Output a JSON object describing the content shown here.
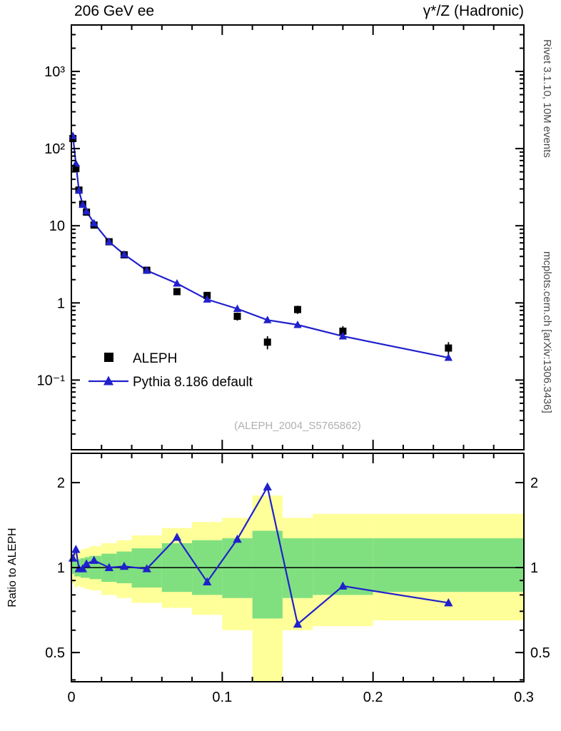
{
  "header": {
    "title_left": "206 GeV ee",
    "title_right": "γ*/Z (Hadronic)"
  },
  "side_labels": {
    "right_top": "Rivet 3.1.10,  10M events",
    "right_bottom": "mcplots.cern.ch [arXiv:1306.3436]",
    "ratio_ylabel": "Ratio to ALEPH"
  },
  "watermark": "(ALEPH_2004_S5765862)",
  "legend": {
    "entries": [
      {
        "label": "ALEPH",
        "marker": "square-icon",
        "color": "#000000"
      },
      {
        "label": "Pythia 8.186 default",
        "marker": "triangle-icon",
        "color": "#2020cc"
      }
    ]
  },
  "chart_data": {
    "type": "scatter",
    "description": "log-scale spectrum with MC/data ratio panel",
    "x_range": [
      0,
      0.3
    ],
    "x_minor_step": 0.02,
    "x_ticks": [
      {
        "v": 0,
        "label": "0"
      },
      {
        "v": 0.1,
        "label": "0.1"
      },
      {
        "v": 0.2,
        "label": "0.2"
      },
      {
        "v": 0.3,
        "label": "0.3"
      }
    ],
    "main_y_range": [
      0.0125,
      4000
    ],
    "main_y_ticks": [
      {
        "v": 1000,
        "label": "10³"
      },
      {
        "v": 100,
        "label": "10²"
      },
      {
        "v": 10,
        "label": "10"
      },
      {
        "v": 1,
        "label": "1"
      },
      {
        "v": 0.1,
        "label": "10⁻¹"
      }
    ],
    "ratio_y_range": [
      0.394,
      2.54
    ],
    "ratio_y_ticks": [
      {
        "v": 2,
        "label": "2"
      },
      {
        "v": 1,
        "label": "1"
      },
      {
        "v": 0.5,
        "label": "0.5"
      }
    ],
    "band_colors": {
      "yellow": "#ffff99",
      "green": "#80e080"
    },
    "series": [
      {
        "name": "ALEPH",
        "marker": "square",
        "color": "#000000",
        "x": [
          0.001,
          0.003,
          0.005,
          0.0075,
          0.01,
          0.015,
          0.025,
          0.035,
          0.05,
          0.07,
          0.09,
          0.11,
          0.13,
          0.15,
          0.18,
          0.25
        ],
        "y": [
          135,
          55,
          29,
          19,
          15,
          10.2,
          6.2,
          4.2,
          2.65,
          1.4,
          1.25,
          0.67,
          0.31,
          0.82,
          0.43,
          0.26
        ],
        "yerr": [
          10,
          4,
          2,
          1.4,
          1.1,
          0.7,
          0.45,
          0.3,
          0.18,
          0.12,
          0.11,
          0.08,
          0.06,
          0.1,
          0.07,
          0.05
        ]
      },
      {
        "name": "Pythia 8.186 default",
        "marker": "triangle",
        "color": "#2020cc",
        "line": true,
        "x": [
          0.001,
          0.003,
          0.005,
          0.0075,
          0.01,
          0.015,
          0.025,
          0.035,
          0.05,
          0.07,
          0.09,
          0.11,
          0.13,
          0.15,
          0.18,
          0.25
        ],
        "y": [
          146,
          64,
          28.7,
          18.8,
          15.4,
          10.8,
          6.2,
          4.25,
          2.63,
          1.79,
          1.11,
          0.84,
          0.6,
          0.52,
          0.37,
          0.195
        ]
      }
    ],
    "ratio": {
      "name": "Pythia 8.186 default / ALEPH",
      "color": "#2020cc",
      "reference": 1,
      "x": [
        0.001,
        0.003,
        0.005,
        0.0075,
        0.01,
        0.015,
        0.025,
        0.035,
        0.05,
        0.07,
        0.09,
        0.11,
        0.13,
        0.15,
        0.18,
        0.25
      ],
      "y": [
        1.08,
        1.16,
        0.99,
        0.99,
        1.03,
        1.06,
        1.0,
        1.01,
        0.99,
        1.28,
        0.89,
        1.26,
        1.93,
        0.63,
        0.86,
        0.75
      ]
    },
    "ratio_bands": [
      {
        "x0": 0.0,
        "x1": 0.002,
        "yellow": [
          0.88,
          1.12
        ],
        "green": [
          0.95,
          1.05
        ]
      },
      {
        "x0": 0.002,
        "x1": 0.004,
        "yellow": [
          0.85,
          1.15
        ],
        "green": [
          0.93,
          1.07
        ]
      },
      {
        "x0": 0.004,
        "x1": 0.006,
        "yellow": [
          0.86,
          1.14
        ],
        "green": [
          0.93,
          1.07
        ]
      },
      {
        "x0": 0.006,
        "x1": 0.009,
        "yellow": [
          0.85,
          1.16
        ],
        "green": [
          0.92,
          1.08
        ]
      },
      {
        "x0": 0.009,
        "x1": 0.012,
        "yellow": [
          0.84,
          1.17
        ],
        "green": [
          0.92,
          1.09
        ]
      },
      {
        "x0": 0.012,
        "x1": 0.02,
        "yellow": [
          0.83,
          1.19
        ],
        "green": [
          0.91,
          1.1
        ]
      },
      {
        "x0": 0.02,
        "x1": 0.03,
        "yellow": [
          0.8,
          1.22
        ],
        "green": [
          0.89,
          1.12
        ]
      },
      {
        "x0": 0.03,
        "x1": 0.04,
        "yellow": [
          0.78,
          1.25
        ],
        "green": [
          0.88,
          1.14
        ]
      },
      {
        "x0": 0.04,
        "x1": 0.06,
        "yellow": [
          0.75,
          1.3
        ],
        "green": [
          0.85,
          1.17
        ]
      },
      {
        "x0": 0.06,
        "x1": 0.08,
        "yellow": [
          0.72,
          1.38
        ],
        "green": [
          0.82,
          1.22
        ]
      },
      {
        "x0": 0.08,
        "x1": 0.1,
        "yellow": [
          0.68,
          1.45
        ],
        "green": [
          0.8,
          1.25
        ]
      },
      {
        "x0": 0.1,
        "x1": 0.12,
        "yellow": [
          0.6,
          1.5
        ],
        "green": [
          0.78,
          1.27
        ]
      },
      {
        "x0": 0.12,
        "x1": 0.14,
        "yellow": [
          0.38,
          1.8
        ],
        "green": [
          0.66,
          1.35
        ]
      },
      {
        "x0": 0.14,
        "x1": 0.16,
        "yellow": [
          0.6,
          1.5
        ],
        "green": [
          0.78,
          1.27
        ]
      },
      {
        "x0": 0.16,
        "x1": 0.2,
        "yellow": [
          0.62,
          1.55
        ],
        "green": [
          0.8,
          1.27
        ]
      },
      {
        "x0": 0.2,
        "x1": 0.3,
        "yellow": [
          0.65,
          1.55
        ],
        "green": [
          0.82,
          1.27
        ]
      }
    ]
  }
}
